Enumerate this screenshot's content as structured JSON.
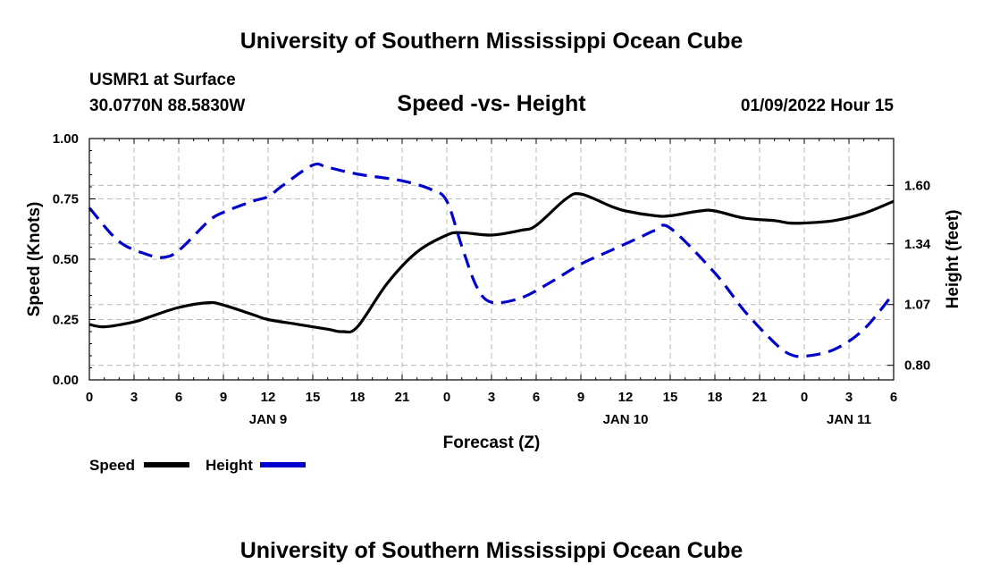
{
  "header": {
    "title_top": "University of Southern Mississippi Ocean Cube",
    "title_bottom": "University of Southern Mississippi Ocean Cube",
    "station": "USMR1 at Surface",
    "location": "30.0770N  88.5830W",
    "datetime": "01/09/2022 Hour 15"
  },
  "chart_data": {
    "type": "line",
    "title": "Speed -vs- Height",
    "xlabel": "Forecast (Z)",
    "ylabel_left": "Speed (Knots)",
    "ylabel_right": "Height (feet)",
    "x_range": [
      0,
      54
    ],
    "x_ticks": [
      0,
      3,
      6,
      9,
      12,
      15,
      18,
      21,
      24,
      27,
      30,
      33,
      36,
      39,
      42,
      45,
      48,
      51,
      54
    ],
    "x_tick_labels": [
      "0",
      "3",
      "6",
      "9",
      "12",
      "15",
      "18",
      "21",
      "0",
      "3",
      "6",
      "9",
      "12",
      "15",
      "18",
      "21",
      "0",
      "3",
      "6"
    ],
    "x_date_labels": [
      {
        "x": 12,
        "label": "JAN 9"
      },
      {
        "x": 36,
        "label": "JAN 10"
      },
      {
        "x": 51,
        "label": "JAN 11"
      }
    ],
    "y_left_range": [
      0,
      1.0
    ],
    "y_left_ticks": [
      0.0,
      0.25,
      0.5,
      0.75,
      1.0
    ],
    "y_left_tick_labels": [
      "0.00",
      "0.25",
      "0.50",
      "0.75",
      "1.00"
    ],
    "y_right_range": [
      0.735,
      1.808
    ],
    "y_right_ticks": [
      0.8,
      1.07,
      1.34,
      1.6
    ],
    "y_right_tick_labels": [
      "0.80",
      "1.07",
      "1.34",
      "1.60"
    ],
    "grid": true,
    "series": [
      {
        "name": "Speed",
        "axis": "left",
        "style": "solid",
        "color": "#000000",
        "x": [
          0,
          1,
          3,
          4,
          6,
          8,
          9,
          11,
          12,
          14,
          16,
          17,
          18,
          20,
          22,
          24,
          25,
          27,
          29,
          30,
          32,
          33,
          35,
          36,
          38,
          39,
          41,
          42,
          44,
          46,
          47,
          48,
          50,
          52,
          54
        ],
        "y": [
          0.23,
          0.22,
          0.24,
          0.26,
          0.3,
          0.32,
          0.31,
          0.27,
          0.25,
          0.23,
          0.21,
          0.2,
          0.22,
          0.4,
          0.53,
          0.6,
          0.61,
          0.6,
          0.62,
          0.64,
          0.75,
          0.77,
          0.72,
          0.7,
          0.68,
          0.68,
          0.7,
          0.7,
          0.67,
          0.66,
          0.65,
          0.65,
          0.66,
          0.69,
          0.74
        ]
      },
      {
        "name": "Height",
        "axis": "right",
        "style": "dashed",
        "color": "#0000cc",
        "x": [
          0,
          2,
          4,
          5,
          6,
          8,
          9,
          11,
          12,
          13,
          15,
          16,
          18,
          21,
          23,
          24,
          25,
          26,
          27,
          29,
          31,
          33,
          35,
          37,
          38,
          39,
          42,
          44,
          46,
          47,
          48,
          50,
          52,
          54
        ],
        "y": [
          1.5,
          1.35,
          1.29,
          1.28,
          1.31,
          1.44,
          1.48,
          1.53,
          1.55,
          1.6,
          1.69,
          1.68,
          1.65,
          1.62,
          1.58,
          1.53,
          1.33,
          1.15,
          1.08,
          1.1,
          1.17,
          1.25,
          1.31,
          1.37,
          1.4,
          1.41,
          1.21,
          1.04,
          0.9,
          0.85,
          0.84,
          0.87,
          0.96,
          1.12
        ]
      }
    ],
    "legend": [
      {
        "label": "Speed",
        "series": "Speed"
      },
      {
        "label": "Height",
        "series": "Height"
      }
    ],
    "legend_position": "bottom-left"
  }
}
